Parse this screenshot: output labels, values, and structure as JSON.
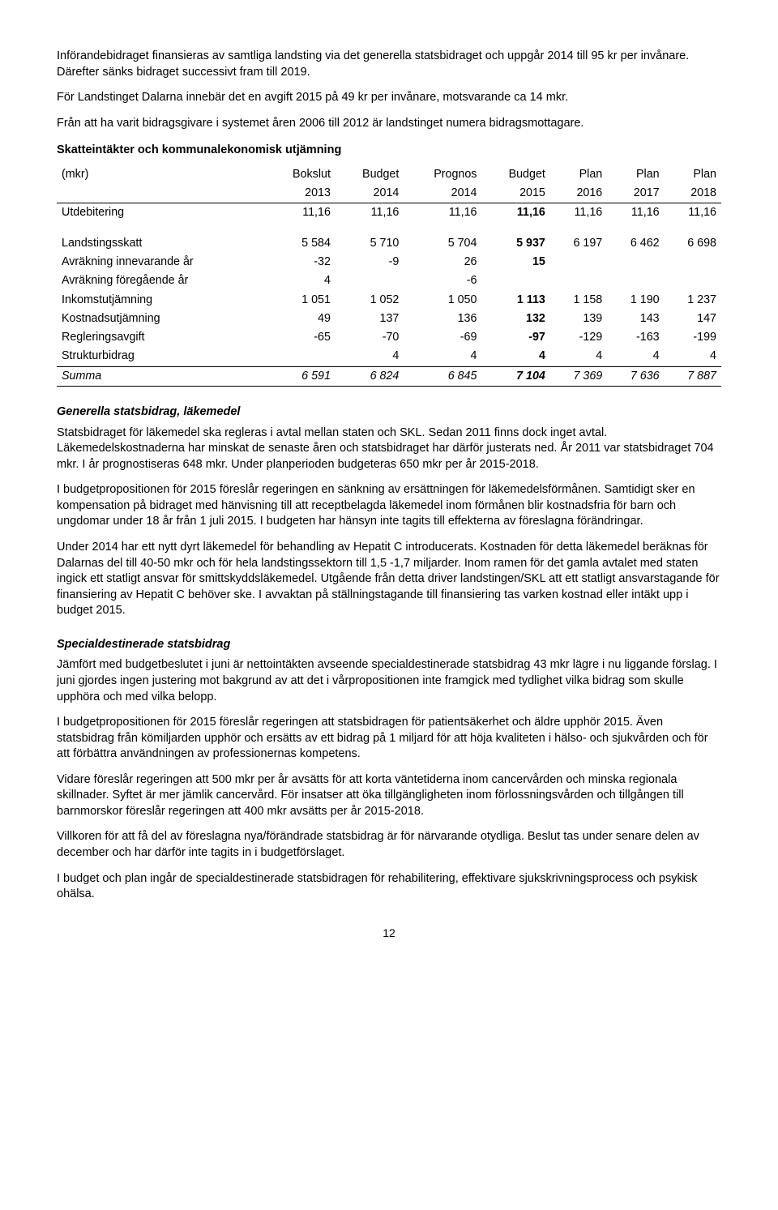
{
  "para1": "Införandebidraget finansieras av samtliga landsting via det generella statsbidraget och uppgår 2014 till 95 kr per invånare. Därefter sänks bidraget successivt fram till 2019.",
  "para2": "För Landstinget Dalarna innebär det en avgift 2015 på 49 kr per invånare, motsvarande ca 14 mkr.",
  "para3": "Från att ha varit bidragsgivare i systemet åren 2006 till 2012 är landstinget numera bidragsmottagare.",
  "section1": "Skatteintäkter och kommunalekonomisk utjämning",
  "table": {
    "cols": [
      "(mkr)",
      "Bokslut",
      "Budget",
      "Prognos",
      "Budget",
      "Plan",
      "Plan",
      "Plan"
    ],
    "years": [
      "",
      "2013",
      "2014",
      "2014",
      "2015",
      "2016",
      "2017",
      "2018"
    ],
    "bold_col_index": 4,
    "r_utdeb": [
      "Utdebitering",
      "11,16",
      "11,16",
      "11,16",
      "11,16",
      "11,16",
      "11,16",
      "11,16"
    ],
    "r_skatt": [
      "Landstingsskatt",
      "5 584",
      "5 710",
      "5 704",
      "5 937",
      "6 197",
      "6 462",
      "6 698"
    ],
    "r_av_in": [
      "Avräkning innevarande år",
      "-32",
      "-9",
      "26",
      "15",
      "",
      "",
      ""
    ],
    "r_av_fg": [
      "Avräkning föregående år",
      "4",
      "",
      "-6",
      "",
      "",
      "",
      ""
    ],
    "r_ink": [
      "Inkomstutjämning",
      "1 051",
      "1 052",
      "1 050",
      "1 113",
      "1 158",
      "1 190",
      "1 237"
    ],
    "r_kost": [
      "Kostnadsutjämning",
      "49",
      "137",
      "136",
      "132",
      "139",
      "143",
      "147"
    ],
    "r_regl": [
      "Regleringsavgift",
      "-65",
      "-70",
      "-69",
      "-97",
      "-129",
      "-163",
      "-199"
    ],
    "r_struk": [
      "Strukturbidrag",
      "",
      "4",
      "4",
      "4",
      "4",
      "4",
      "4"
    ],
    "r_sum": [
      "Summa",
      "6 591",
      "6 824",
      "6 845",
      "7 104",
      "7 369",
      "7 636",
      "7 887"
    ]
  },
  "sub_gen": "Generella statsbidrag, läkemedel",
  "gen_p1": "Statsbidraget för läkemedel ska regleras i avtal mellan staten och SKL. Sedan 2011 finns dock inget avtal. Läkemedelskostnaderna har minskat de senaste åren och statsbidraget har därför justerats ned. År 2011 var statsbidraget 704 mkr. I år prognostiseras 648 mkr. Under planperioden budgeteras 650 mkr per år 2015-2018.",
  "gen_p2": "I budgetpropositionen för 2015 föreslår regeringen en sänkning av ersättningen för läkemedelsförmånen. Samtidigt sker en kompensation på bidraget med hänvisning till att receptbelagda läkemedel inom förmånen blir kostnadsfria för barn och ungdomar under 18 år från 1 juli 2015. I budgeten har hänsyn inte tagits till effekterna av föreslagna förändringar.",
  "gen_p3": "Under 2014 har ett nytt dyrt läkemedel för behandling av Hepatit C introducerats. Kostnaden för detta läkemedel beräknas för Dalarnas del till 40-50 mkr och för hela landstingssektorn till 1,5 -1,7 miljarder. Inom ramen för det gamla avtalet med staten ingick ett statligt ansvar för smittskyddsläkemedel. Utgående från detta driver landstingen/SKL att ett statligt ansvarstagande för finansiering av Hepatit C behöver ske. I avvaktan på ställningstagande till finansiering tas varken kostnad eller intäkt upp i budget 2015.",
  "sub_spec": "Specialdestinerade statsbidrag",
  "spec_p1": "Jämfört med budgetbeslutet i juni är nettointäkten avseende specialdestinerade statsbidrag 43 mkr lägre i nu liggande förslag. I juni gjordes ingen justering mot bakgrund av att det i vårpropositionen inte framgick med tydlighet vilka bidrag som skulle upphöra och med vilka belopp.",
  "spec_p2": "I budgetpropositionen för 2015 föreslår regeringen att statsbidragen för patientsäkerhet och äldre upphör 2015. Även statsbidrag från kömiljarden upphör och ersätts av ett bidrag på 1 miljard för att höja kvaliteten i hälso- och sjukvården och för att förbättra användningen av professionernas kompetens.",
  "spec_p3": "Vidare föreslår regeringen att 500 mkr per år avsätts för att korta väntetiderna inom cancervården och minska regionala skillnader. Syftet är mer jämlik cancervård. För insatser att öka tillgängligheten inom förlossningsvården och tillgången till barnmorskor föreslår regeringen att 400 mkr avsätts per år 2015-2018.",
  "spec_p4": "Villkoren för att få del av föreslagna nya/förändrade statsbidrag är för närvarande otydliga. Beslut tas under senare delen av december och har därför inte tagits in i budgetförslaget.",
  "spec_p5": "I budget och plan ingår de specialdestinerade statsbidragen för rehabilitering, effektivare sjukskrivningsprocess och psykisk ohälsa.",
  "page": "12"
}
